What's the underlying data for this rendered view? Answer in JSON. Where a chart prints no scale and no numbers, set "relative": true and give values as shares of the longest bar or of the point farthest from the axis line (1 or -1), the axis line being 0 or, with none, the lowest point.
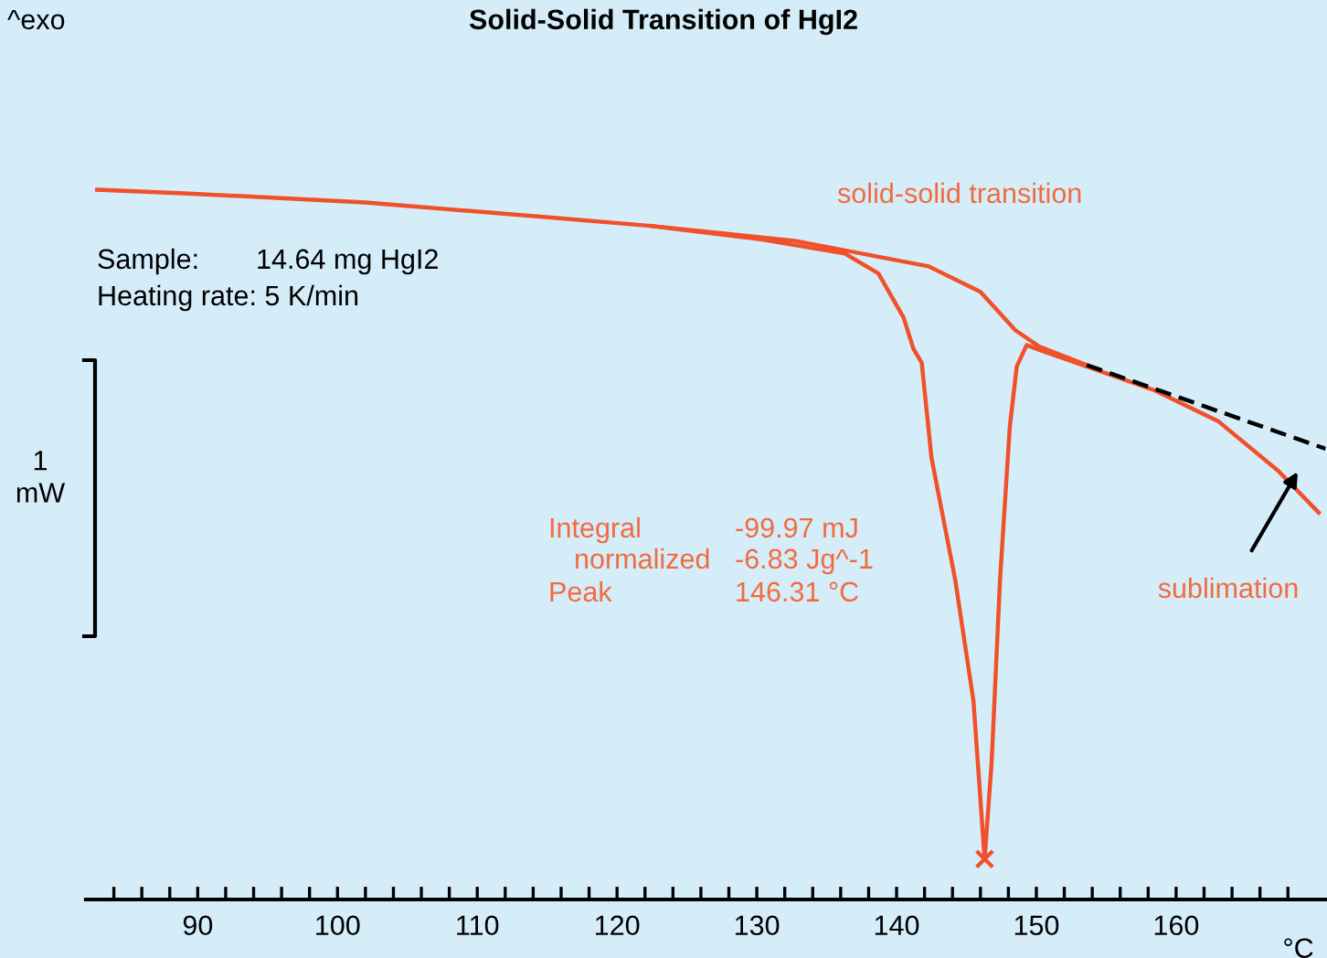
{
  "chart_data": {
    "type": "line",
    "title": "Solid-Solid Transition of HgI2",
    "xlabel": "°C",
    "relative": true,
    "xlim": [
      82,
      170.7
    ],
    "xticks": [
      {
        "value": 84,
        "label": null
      },
      {
        "value": 86,
        "label": null
      },
      {
        "value": 88,
        "label": null
      },
      90,
      {
        "value": 92,
        "label": null
      },
      {
        "value": 94,
        "label": null
      },
      {
        "value": 96,
        "label": null
      },
      {
        "value": 98,
        "label": null
      },
      100,
      {
        "value": 102,
        "label": null
      },
      {
        "value": 104,
        "label": null
      },
      {
        "value": 106,
        "label": null
      },
      {
        "value": 108,
        "label": null
      },
      110,
      {
        "value": 112,
        "label": null
      },
      {
        "value": 114,
        "label": null
      },
      {
        "value": 116,
        "label": null
      },
      {
        "value": 118,
        "label": null
      },
      120,
      {
        "value": 122,
        "label": null
      },
      {
        "value": 124,
        "label": null
      },
      {
        "value": 126,
        "label": null
      },
      {
        "value": 128,
        "label": null
      },
      130,
      {
        "value": 132,
        "label": null
      },
      {
        "value": 134,
        "label": null
      },
      {
        "value": 136,
        "label": null
      },
      {
        "value": 138,
        "label": null
      },
      140,
      {
        "value": 142,
        "label": null
      },
      {
        "value": 144,
        "label": null
      },
      {
        "value": 146,
        "label": null
      },
      {
        "value": 148,
        "label": null
      },
      150,
      {
        "value": 152,
        "label": null
      },
      {
        "value": 154,
        "label": null
      },
      {
        "value": 156,
        "label": null
      },
      {
        "value": 158,
        "label": null
      },
      160,
      {
        "value": 162,
        "label": null
      },
      {
        "value": 164,
        "label": null
      },
      {
        "value": 166,
        "label": null
      },
      {
        "value": 168,
        "label": null
      }
    ],
    "series": [
      {
        "color": "#f0502a",
        "x": [
          82.8,
          89.0,
          102.0,
          115.1,
          122.4,
          130.3,
          136.3,
          138.7,
          140.5,
          141.2,
          141.8,
          142.5,
          144.2,
          145.5,
          146.3,
          146.8,
          147.4,
          148.1,
          148.6,
          149.3,
          150.7,
          153.6,
          158.5,
          163.0,
          167.3,
          170.2
        ],
        "values": [
          1.0,
          0.995,
          0.982,
          0.961,
          0.949,
          0.93,
          0.91,
          0.882,
          0.82,
          0.776,
          0.756,
          0.622,
          0.45,
          0.28,
          0.057,
          0.193,
          0.45,
          0.666,
          0.751,
          0.781,
          0.771,
          0.751,
          0.717,
          0.674,
          0.604,
          0.545
        ]
      },
      {
        "color": "#f0502a",
        "x": [
          122.4,
          132.7,
          142.3,
          146.0,
          148.5,
          150.2,
          153.6
        ],
        "values": [
          0.949,
          0.928,
          0.892,
          0.856,
          0.802,
          0.779,
          0.753
        ]
      },
      {
        "color": "#000000",
        "line_style": "dashed",
        "x": [
          153.6,
          170.7
        ],
        "values": [
          0.753,
          0.635
        ]
      },
      {
        "type": "scatter",
        "color": "#f0502a",
        "marker": "cross",
        "x": [
          146.3
        ],
        "values": [
          0.057
        ]
      }
    ],
    "annotations": [
      "^exo",
      "Sample:",
      "14.64 mg HgI2",
      "Heating rate: 5 K/min",
      "1\nmW",
      "solid-solid transition",
      "Integral",
      "-99.97 mJ",
      "normalized",
      "-6.83 Jg^-1",
      "Peak",
      "146.31 °C",
      "sublimation"
    ]
  }
}
